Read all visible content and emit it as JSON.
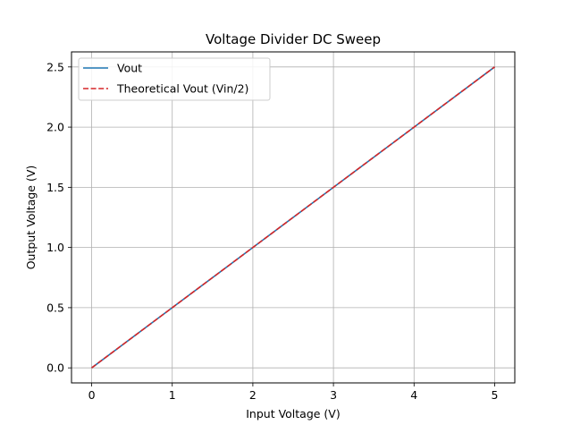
{
  "chart_data": {
    "type": "line",
    "title": "Voltage Divider DC Sweep",
    "xlabel": "Input Voltage (V)",
    "ylabel": "Output Voltage (V)",
    "xlim": [
      -0.25,
      5.25
    ],
    "ylim": [
      -0.125,
      2.625
    ],
    "xticks": [
      0,
      1,
      2,
      3,
      4,
      5
    ],
    "xtick_labels": [
      "0",
      "1",
      "2",
      "3",
      "4",
      "5"
    ],
    "yticks": [
      0.0,
      0.5,
      1.0,
      1.5,
      2.0,
      2.5
    ],
    "ytick_labels": [
      "0.0",
      "0.5",
      "1.0",
      "1.5",
      "2.0",
      "2.5"
    ],
    "grid": true,
    "legend_position": "top-left",
    "series": [
      {
        "name": "Vout",
        "color": "#1f77b4",
        "style": "solid",
        "x": [
          0,
          1,
          2,
          3,
          4,
          5
        ],
        "y": [
          0.0,
          0.5,
          1.0,
          1.5,
          2.0,
          2.5
        ]
      },
      {
        "name": "Theoretical Vout (Vin/2)",
        "color": "#d62728",
        "style": "dashed",
        "x": [
          0,
          1,
          2,
          3,
          4,
          5
        ],
        "y": [
          0.0,
          0.5,
          1.0,
          1.5,
          2.0,
          2.5
        ]
      }
    ]
  }
}
